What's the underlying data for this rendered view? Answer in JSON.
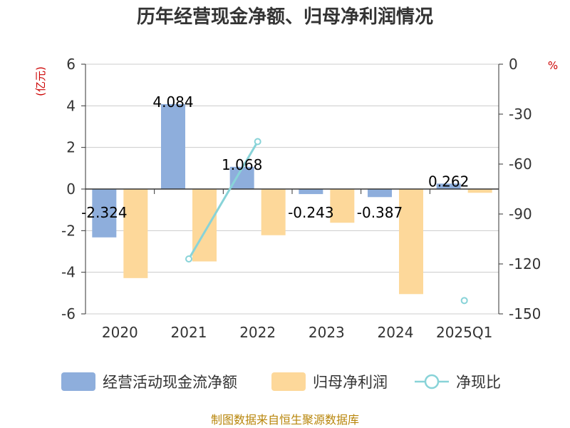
{
  "title": "历年经营现金净额、归母净利润情况",
  "source": "制图数据来自恒生聚源数据库",
  "chart_data": {
    "type": "bar",
    "categories": [
      "2020",
      "2021",
      "2022",
      "2023",
      "2024",
      "2025Q1"
    ],
    "series": [
      {
        "name": "经营活动现金流净额",
        "type": "bar",
        "axis": "left",
        "color": "#8eaedc",
        "values": [
          -2.324,
          4.084,
          1.068,
          -0.243,
          -0.387,
          0.262
        ],
        "labels": [
          "-2.324",
          "4.084",
          "1.068",
          "-0.243",
          "-0.387",
          "0.262"
        ]
      },
      {
        "name": "归母净利润",
        "type": "bar",
        "axis": "left",
        "color": "#fdd89a",
        "values": [
          -4.28,
          -3.48,
          -2.22,
          -1.62,
          -5.05,
          -0.18
        ]
      },
      {
        "name": "净现比",
        "type": "line",
        "axis": "right",
        "color": "#88d3d8",
        "values": [
          null,
          -117,
          -46.5,
          null,
          null,
          -142
        ]
      }
    ],
    "left_axis": {
      "unit": "(亿元)",
      "min": -6,
      "max": 6,
      "ticks": [
        "6",
        "4",
        "2",
        "0",
        "-2",
        "-4",
        "-6"
      ]
    },
    "right_axis": {
      "unit": "%",
      "min": -150,
      "max": 0,
      "ticks": [
        "0",
        "-30",
        "-60",
        "-90",
        "-120",
        "-150"
      ]
    },
    "grid": true,
    "legend_position": "bottom"
  }
}
